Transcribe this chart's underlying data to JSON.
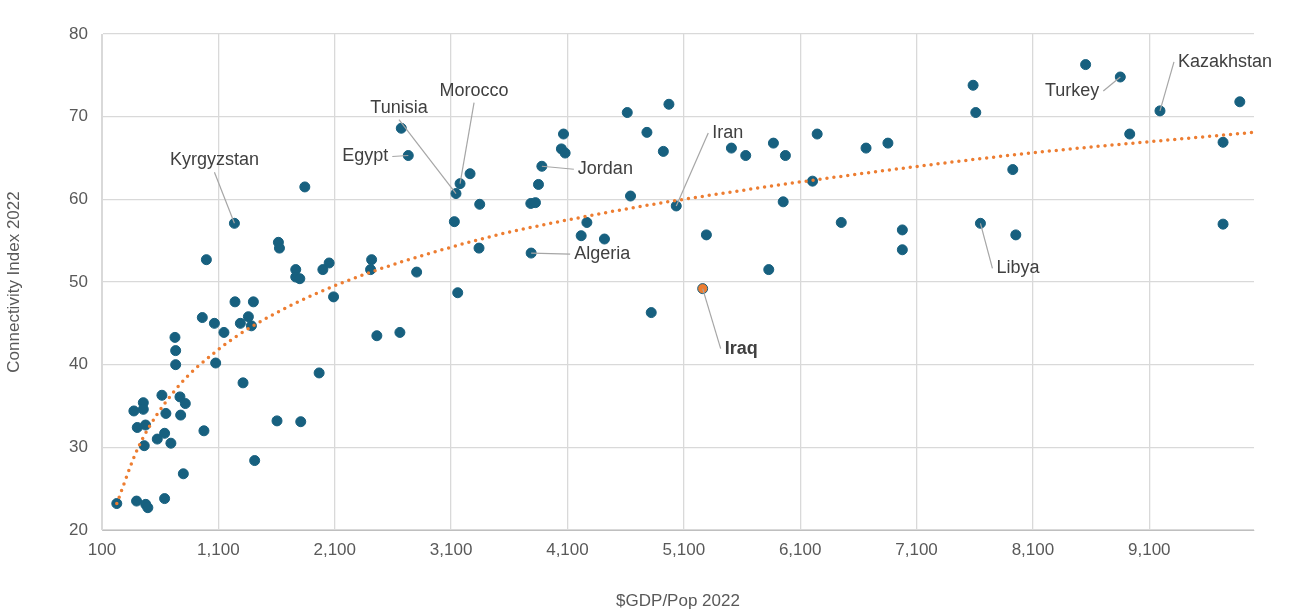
{
  "chart_data": {
    "type": "scatter",
    "xlabel": "$GDP/Pop 2022",
    "ylabel": "Connectivity Index 2022",
    "xlim": [
      100,
      10000
    ],
    "xticks": [
      {
        "value": 100,
        "label": "100"
      },
      {
        "value": 1100,
        "label": "1,100"
      },
      {
        "value": 2100,
        "label": "2,100"
      },
      {
        "value": 3100,
        "label": "3,100"
      },
      {
        "value": 4100,
        "label": "4,100"
      },
      {
        "value": 5100,
        "label": "5,100"
      },
      {
        "value": 6100,
        "label": "6,100"
      },
      {
        "value": 7100,
        "label": "7,100"
      },
      {
        "value": 8100,
        "label": "8,100"
      },
      {
        "value": 9100,
        "label": "9,100"
      }
    ],
    "ylim": [
      20,
      80
    ],
    "yticks": [
      20,
      30,
      40,
      50,
      60,
      70,
      80
    ],
    "grid": true,
    "marker": "circle",
    "series": [
      {
        "color": "#17607f",
        "x": [
          227,
          397,
          476,
          494,
          638,
          799,
          1412,
          374,
          455,
          455,
          403,
          474,
          463,
          575,
          638,
          692,
          649,
          615,
          770,
          816,
          776,
          976,
          727,
          733,
          733,
          997,
          962,
          1066,
          1077,
          1148,
          1312,
          1238,
          1243,
          1401,
          1358,
          1289,
          1384,
          1604,
          1808,
          1966,
          1616,
          1625,
          1843,
          1765,
          1765,
          1800,
          1998,
          2052,
          2090,
          2417,
          2408,
          2804,
          2462,
          2660,
          3157,
          3128,
          3142,
          3177,
          3263,
          2672,
          2732,
          3346,
          3340,
          3788,
          3785,
          3825,
          3851,
          3880,
          4066,
          4048,
          4080,
          4267,
          4218,
          4418,
          4614,
          4972,
          4783,
          4924,
          4642,
          5035,
          5294,
          4820,
          5509,
          5632,
          5870,
          5973,
          5954,
          6246,
          6206,
          6453,
          5830,
          6666,
          6854,
          6978,
          6978,
          7586,
          7609,
          7649,
          7927,
          7953,
          8553,
          8851,
          8932,
          9192,
          9878,
          9734,
          9734
        ],
        "values": [
          23.2,
          23.5,
          23.1,
          22.7,
          23.8,
          26.8,
          28.4,
          34.4,
          35.4,
          34.6,
          32.4,
          32.7,
          30.2,
          31.0,
          31.7,
          30.5,
          34.1,
          36.3,
          36.1,
          35.3,
          33.9,
          32.0,
          43.3,
          41.7,
          40.0,
          52.7,
          45.7,
          45.0,
          40.2,
          43.9,
          37.8,
          57.1,
          47.6,
          47.6,
          45.8,
          45.0,
          44.7,
          33.2,
          33.1,
          39.0,
          54.8,
          54.1,
          61.5,
          51.5,
          50.6,
          50.4,
          51.5,
          52.3,
          48.2,
          52.7,
          51.5,
          51.2,
          43.5,
          43.9,
          48.7,
          57.3,
          60.7,
          61.9,
          63.1,
          68.6,
          65.3,
          59.4,
          54.1,
          53.5,
          59.5,
          59.6,
          61.8,
          64.0,
          67.9,
          66.1,
          65.6,
          57.2,
          55.6,
          55.2,
          70.5,
          71.5,
          68.1,
          65.8,
          60.4,
          59.2,
          55.7,
          46.3,
          66.2,
          65.3,
          66.8,
          65.3,
          59.7,
          67.9,
          62.2,
          57.2,
          51.5,
          66.2,
          66.8,
          56.3,
          53.9,
          73.8,
          70.5,
          57.1,
          63.6,
          55.7,
          76.3,
          74.8,
          67.9,
          70.7,
          71.8,
          66.9,
          57.0
        ]
      },
      {
        "color": "#ed7d31",
        "x": [
          5262
        ],
        "values": [
          49.2
        ]
      },
      {
        "type": "line",
        "color": "#ed7d31",
        "marker": "none",
        "line_style": "dotted",
        "x": [
          227,
          412,
          727,
          1088,
          1435,
          2109,
          3303,
          4100,
          5098,
          7823,
          9990
        ],
        "values": [
          23.2,
          30.0,
          36.9,
          41.7,
          45.0,
          49.6,
          55.0,
          57.5,
          60.0,
          65.2,
          68.1
        ]
      }
    ],
    "annotations": [
      {
        "text": "Kyrgyzstan",
        "x": 1238,
        "y": 57.1
      },
      {
        "text": "Egypt",
        "x": 2732,
        "y": 65.3
      },
      {
        "text": "Tunisia",
        "x": 3142,
        "y": 60.7
      },
      {
        "text": "Morocco",
        "x": 3177,
        "y": 61.9
      },
      {
        "text": "Jordan",
        "x": 3880,
        "y": 64.0
      },
      {
        "text": "Algeria",
        "x": 3788,
        "y": 53.5
      },
      {
        "text": "Iran",
        "x": 5035,
        "y": 59.2
      },
      {
        "text": "Iraq",
        "x": 5262,
        "y": 49.2
      },
      {
        "text": "Libya",
        "x": 7649,
        "y": 57.1
      },
      {
        "text": "Turkey",
        "x": 8851,
        "y": 74.8
      },
      {
        "text": "Kazakhstan",
        "x": 9192,
        "y": 70.7
      }
    ]
  }
}
